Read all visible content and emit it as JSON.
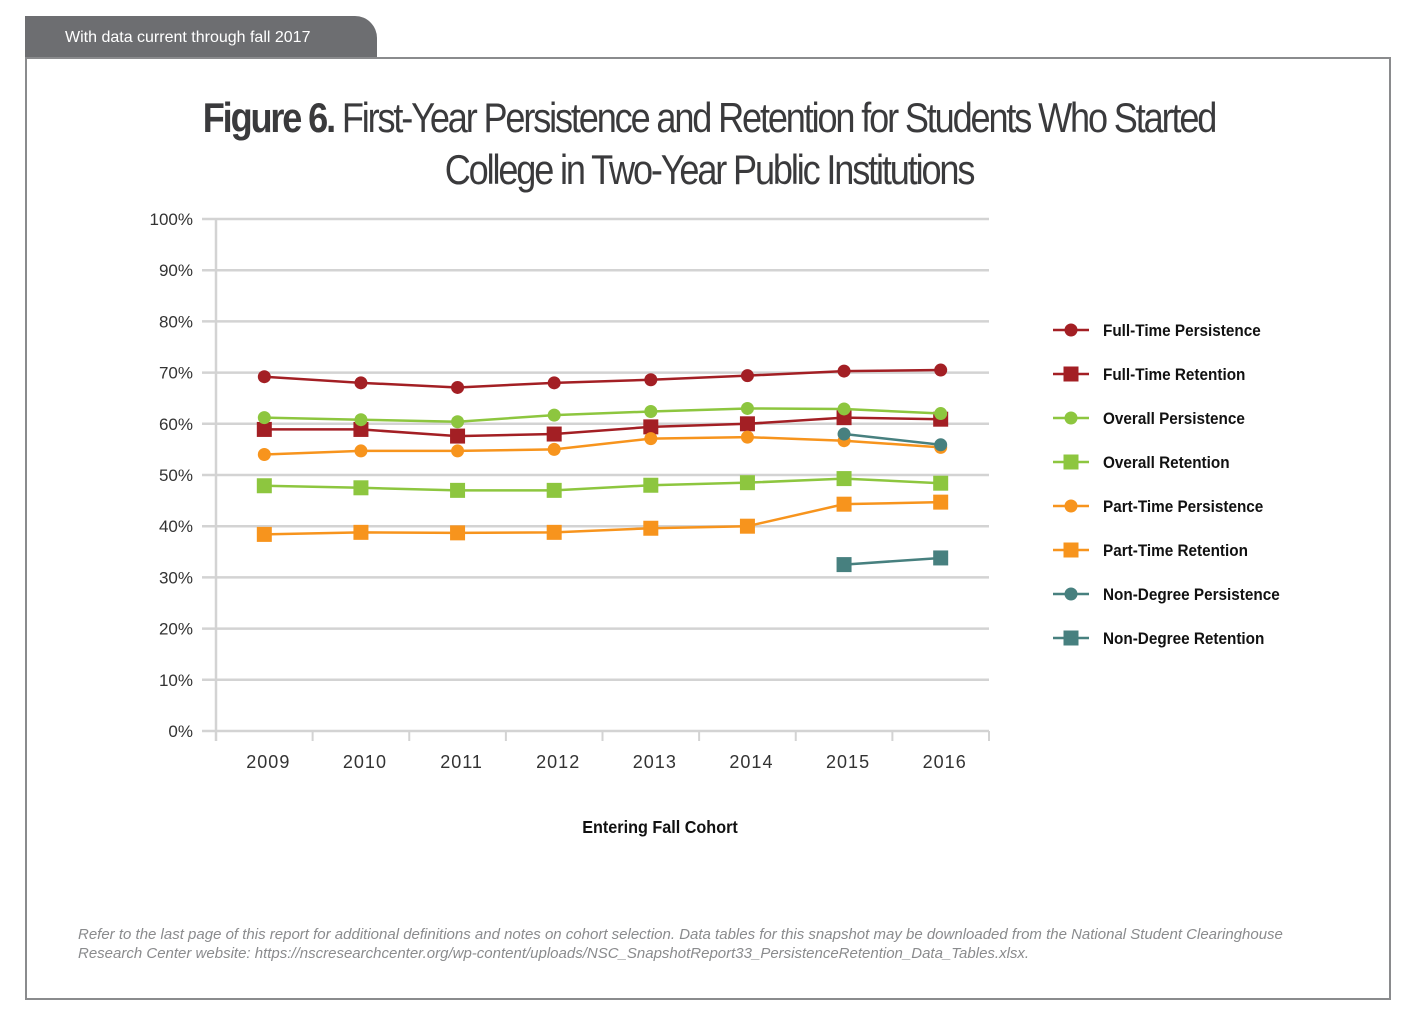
{
  "header_tab": "With data current through fall 2017",
  "title": {
    "prefix": "Figure 6.",
    "text": "First-Year Persistence and Retention for Students Who Started College in Two-Year Public Institutions"
  },
  "footnote": "Refer to the last page of this report for additional definitions and notes on cohort selection. Data tables for this snapshot may be downloaded from the National Student Clearinghouse Research Center website: https://nscresearchcenter.org/wp-content/uploads/NSC_SnapshotReport33_PersistenceRetention_Data_Tables.xlsx.",
  "chart_data": {
    "type": "line",
    "title": "First-Year Persistence and Retention for Students Who Started College in Two-Year Public Institutions",
    "xlabel": "Entering Fall Cohort",
    "ylabel": "",
    "ylim": [
      0,
      100
    ],
    "yticks": [
      "0%",
      "10%",
      "20%",
      "30%",
      "40%",
      "50%",
      "60%",
      "70%",
      "80%",
      "90%",
      "100%"
    ],
    "categories": [
      "2009",
      "2010",
      "2011",
      "2012",
      "2013",
      "2014",
      "2015",
      "2016"
    ],
    "legend_position": "right",
    "grid": true,
    "series": [
      {
        "name": "Full-Time Persistence",
        "marker": "circle",
        "color": "#a31f24",
        "values": [
          69.2,
          68.0,
          67.1,
          68.0,
          68.6,
          69.4,
          70.3,
          70.5
        ]
      },
      {
        "name": "Full-Time Retention",
        "marker": "square",
        "color": "#a31f24",
        "values": [
          58.9,
          58.9,
          57.6,
          58.0,
          59.4,
          60.0,
          61.2,
          60.9
        ]
      },
      {
        "name": "Overall Persistence",
        "marker": "circle",
        "color": "#8dc63f",
        "values": [
          61.2,
          60.8,
          60.4,
          61.7,
          62.4,
          63.0,
          62.9,
          62.0
        ]
      },
      {
        "name": "Overall Retention",
        "marker": "square",
        "color": "#8dc63f",
        "values": [
          47.9,
          47.5,
          47.0,
          47.0,
          48.0,
          48.5,
          49.3,
          48.4
        ]
      },
      {
        "name": "Part-Time Persistence",
        "marker": "circle",
        "color": "#f7941d",
        "values": [
          54.0,
          54.7,
          54.7,
          55.0,
          57.1,
          57.4,
          56.7,
          55.4
        ]
      },
      {
        "name": "Part-Time Retention",
        "marker": "square",
        "color": "#f7941d",
        "values": [
          38.4,
          38.8,
          38.7,
          38.8,
          39.6,
          40.0,
          44.3,
          44.7
        ]
      },
      {
        "name": "Non-Degree Persistence",
        "marker": "circle",
        "color": "#47807f",
        "values": [
          null,
          null,
          null,
          null,
          null,
          null,
          58.0,
          55.9
        ]
      },
      {
        "name": "Non-Degree Retention",
        "marker": "square",
        "color": "#47807f",
        "values": [
          null,
          null,
          null,
          null,
          null,
          null,
          32.5,
          33.8
        ]
      }
    ]
  }
}
